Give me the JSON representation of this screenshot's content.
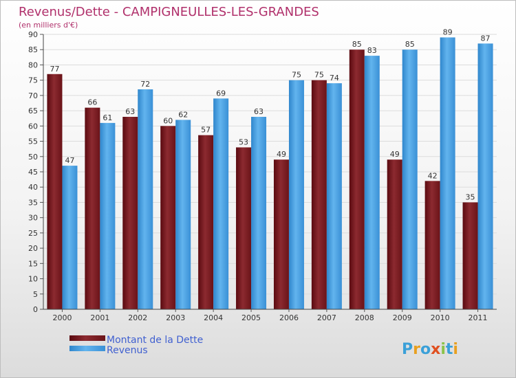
{
  "chart_data": {
    "type": "bar",
    "title": "Revenus/Dette - CAMPIGNEULLES-LES-GRANDES",
    "subtitle": "(en milliers d'€)",
    "categories": [
      "2000",
      "2001",
      "2002",
      "2003",
      "2004",
      "2005",
      "2006",
      "2007",
      "2008",
      "2009",
      "2010",
      "2011"
    ],
    "series": [
      {
        "name": "Montant de la Dette",
        "color": "#7a1a1f",
        "values": [
          77,
          66,
          63,
          60,
          57,
          53,
          49,
          75,
          85,
          49,
          42,
          35
        ]
      },
      {
        "name": "Revenus",
        "color": "#4da6e6",
        "values": [
          47,
          61,
          72,
          62,
          69,
          63,
          75,
          74,
          83,
          85,
          89,
          87
        ]
      }
    ],
    "ylim": [
      0,
      90
    ],
    "ytick_step": 5,
    "xlabel": "",
    "ylabel": "",
    "legend_position": "bottom-left"
  },
  "logo": {
    "text": "Proxiti"
  }
}
